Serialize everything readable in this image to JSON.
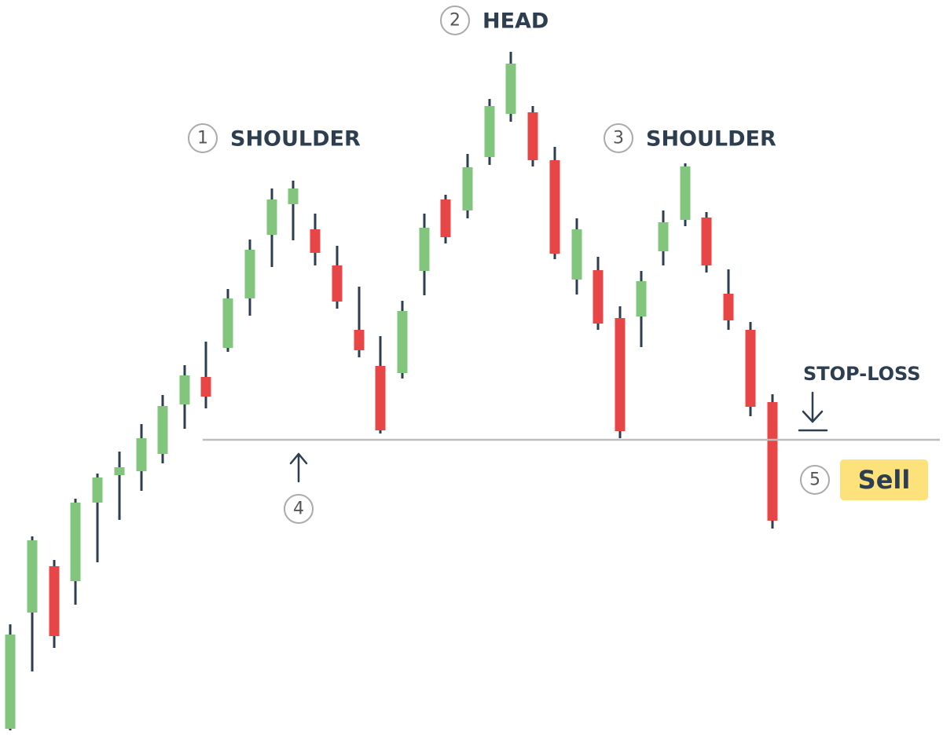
{
  "labels": {
    "shoulder_left": {
      "number": "1",
      "text": "SHOULDER"
    },
    "head": {
      "number": "2",
      "text": "HEAD"
    },
    "shoulder_right": {
      "number": "3",
      "text": "SHOULDER"
    },
    "neckline": {
      "number": "4"
    },
    "stop_loss": {
      "text": "STOP-LOSS"
    },
    "sell": {
      "number": "5",
      "text": "Sell"
    }
  }
}
